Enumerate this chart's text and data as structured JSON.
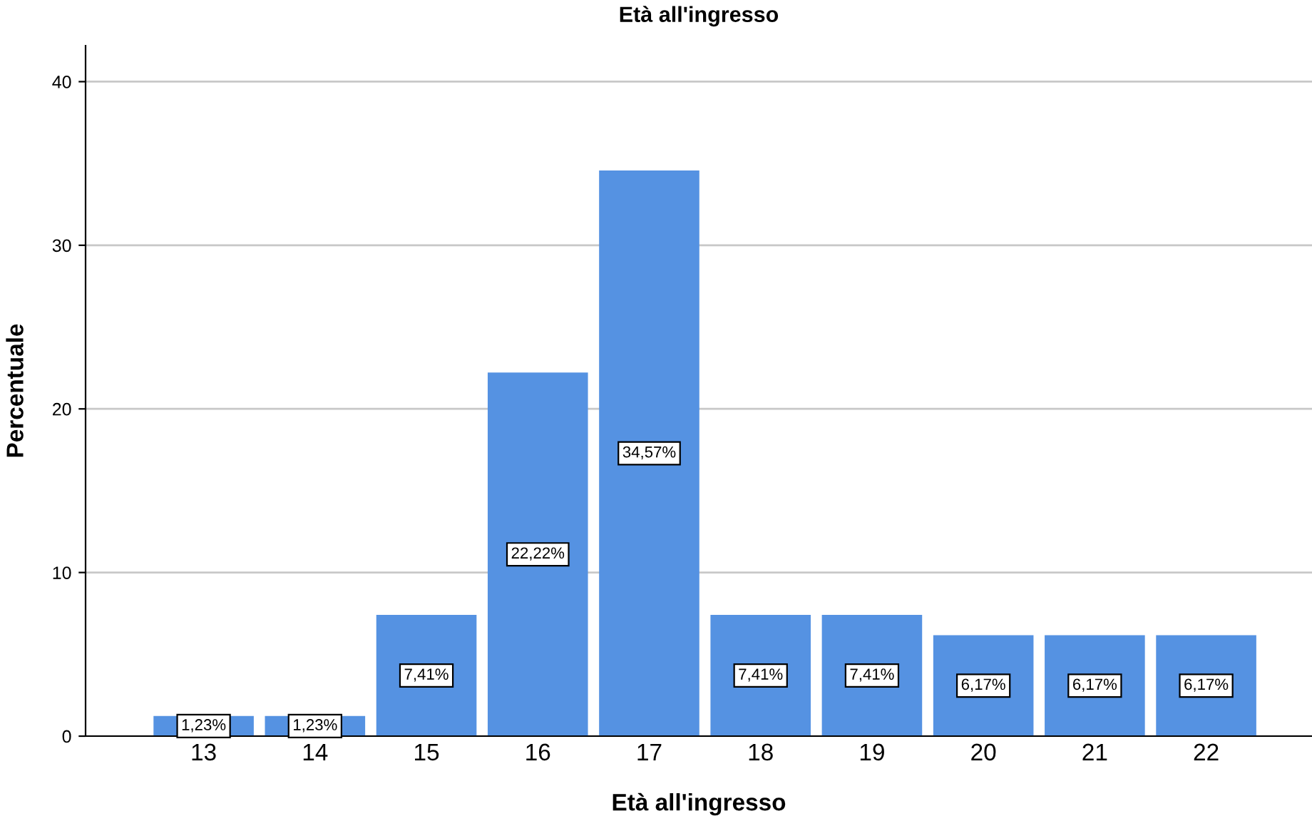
{
  "chart_data": {
    "type": "bar",
    "title": "Età all'ingresso",
    "xlabel": "Età all'ingresso",
    "ylabel": "Percentuale",
    "categories": [
      "13",
      "14",
      "15",
      "16",
      "17",
      "18",
      "19",
      "20",
      "21",
      "22"
    ],
    "values": [
      1.23,
      1.23,
      7.41,
      22.22,
      34.57,
      7.41,
      7.41,
      6.17,
      6.17,
      6.17
    ],
    "value_labels": [
      "1,23%",
      "1,23%",
      "7,41%",
      "22,22%",
      "34,57%",
      "7,41%",
      "7,41%",
      "6,17%",
      "6,17%",
      "6,17%"
    ],
    "color": "#5592e2",
    "ylim": [
      0,
      42.2
    ],
    "yticks": [
      0,
      10,
      20,
      30,
      40
    ],
    "grid": "y",
    "legend": false
  }
}
